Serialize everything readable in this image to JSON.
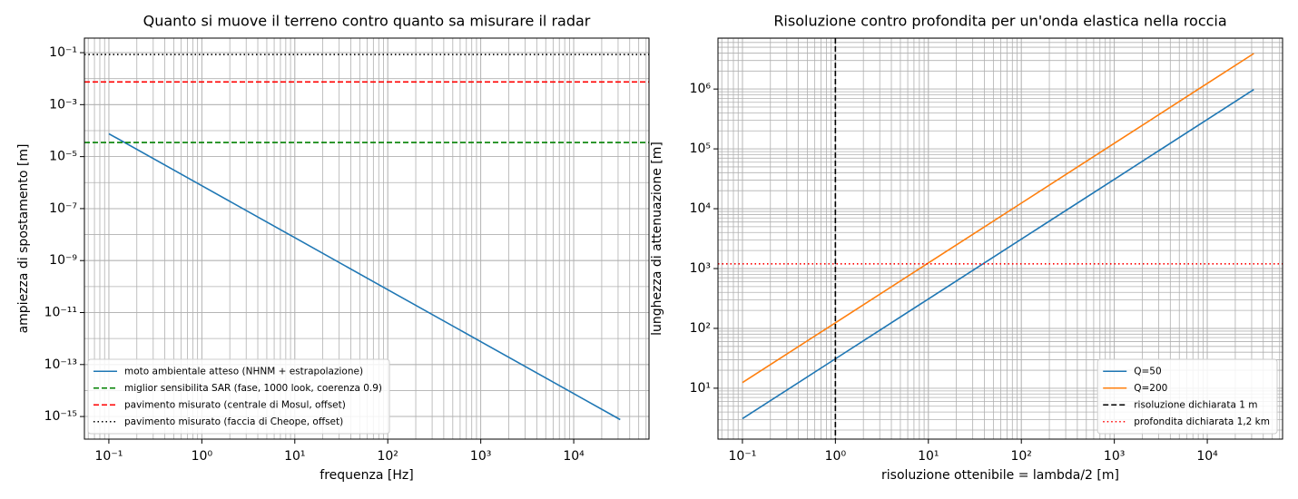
{
  "chart_data": [
    {
      "type": "line",
      "title": "Quanto si muove il terreno contro quanto sa misurare il radar",
      "xlabel": "frequenza [Hz]",
      "ylabel": "ampiezza di spostamento [m]",
      "xscale": "log",
      "yscale": "log",
      "xlim": [
        0.0546,
        64500
      ],
      "ylim": [
        1.35e-16,
        0.363
      ],
      "xticks": [
        {
          "value": 0.1,
          "label": "10⁻¹"
        },
        {
          "value": 1,
          "label": "10⁰"
        },
        {
          "value": 10,
          "label": "10¹"
        },
        {
          "value": 100,
          "label": "10²"
        },
        {
          "value": 1000,
          "label": "10³"
        },
        {
          "value": 10000,
          "label": "10⁴"
        }
      ],
      "yticks": [
        {
          "value": 1e-15,
          "label": "10⁻¹⁵"
        },
        {
          "value": 1e-13,
          "label": "10⁻¹³"
        },
        {
          "value": 1e-11,
          "label": "10⁻¹¹"
        },
        {
          "value": 1e-09,
          "label": "10⁻⁹"
        },
        {
          "value": 1e-07,
          "label": "10⁻⁷"
        },
        {
          "value": 1e-05,
          "label": "10⁻⁵"
        },
        {
          "value": 0.001,
          "label": "10⁻³"
        },
        {
          "value": 0.1,
          "label": "10⁻¹"
        }
      ],
      "minor_grid": {
        "x": "full",
        "y": "decade"
      },
      "legend": "lower left",
      "series": [
        {
          "name": "moto ambientale atteso (NHNM + estrapolazione)",
          "color": "#1f77b4",
          "x": [
            0.1,
            1,
            10,
            100,
            1000,
            10000,
            31623
          ],
          "values": [
            7.6e-05,
            7.6e-07,
            7.6e-09,
            7.6e-11,
            7.6e-13,
            7.6e-15,
            7.6e-16
          ]
        }
      ],
      "vlines": [],
      "hlines": [
        {
          "name": "miglior sensibilita SAR (fase, 1000 look, coerenza 0.9)",
          "color": "#008000",
          "value": 3.5e-05,
          "dash": "dashed"
        },
        {
          "name": "pavimento misurato (centrale di Mosul, offset)",
          "color": "#ff0000",
          "value": 0.0075,
          "dash": "dashed"
        },
        {
          "name": "pavimento misurato (faccia di Cheope, offset)",
          "color": "#000000",
          "value": 0.085,
          "dash": "dotted"
        }
      ]
    },
    {
      "type": "line",
      "title": "Risoluzione contro profondita per un'onda elastica nella roccia",
      "xlabel": "risoluzione ottenibile = lambda/2 [m]",
      "ylabel": "lunghezza di attenuazione [m]",
      "xscale": "log",
      "yscale": "log",
      "xlim": [
        0.0546,
        64500
      ],
      "ylim": [
        1.41,
        7100000
      ],
      "xticks": [
        {
          "value": 0.1,
          "label": "10⁻¹"
        },
        {
          "value": 1,
          "label": "10⁰"
        },
        {
          "value": 10,
          "label": "10¹"
        },
        {
          "value": 100,
          "label": "10²"
        },
        {
          "value": 1000,
          "label": "10³"
        },
        {
          "value": 10000,
          "label": "10⁴"
        }
      ],
      "yticks": [
        {
          "value": 10,
          "label": "10¹"
        },
        {
          "value": 100,
          "label": "10²"
        },
        {
          "value": 1000,
          "label": "10³"
        },
        {
          "value": 10000,
          "label": "10⁴"
        },
        {
          "value": 100000,
          "label": "10⁵"
        },
        {
          "value": 1000000,
          "label": "10⁶"
        }
      ],
      "minor_grid": {
        "x": "full",
        "y": "full"
      },
      "legend": "lower right",
      "series": [
        {
          "name": "Q=50",
          "color": "#1f77b4",
          "x": [
            0.1,
            1,
            10,
            100,
            1000,
            10000,
            31623
          ],
          "values": [
            3.1,
            31,
            310,
            3100,
            31000,
            310000,
            980000
          ]
        },
        {
          "name": "Q=200",
          "color": "#ff7f0e",
          "x": [
            0.1,
            1,
            10,
            100,
            1000,
            10000,
            31623
          ],
          "values": [
            12.4,
            124,
            1240,
            12400,
            124000,
            1240000,
            3920000
          ]
        }
      ],
      "vlines": [
        {
          "name": "risoluzione dichiarata 1 m",
          "color": "#000000",
          "value": 1,
          "dash": "dashed"
        }
      ],
      "hlines": [
        {
          "name": "profondita dichiarata 1,2 km",
          "color": "#ff0000",
          "value": 1200,
          "dash": "dotted"
        }
      ]
    }
  ]
}
